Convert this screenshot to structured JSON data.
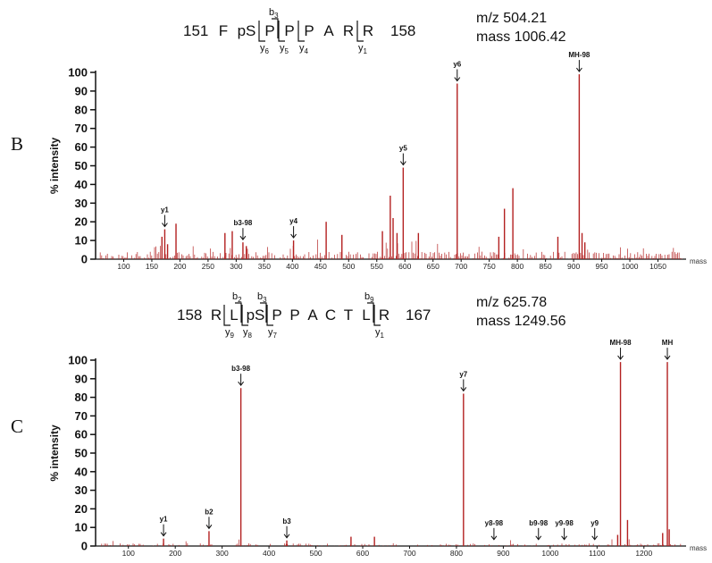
{
  "charts": [
    {
      "panel_letter": "B",
      "sequence": {
        "start_number": "151",
        "end_number": "158",
        "residues": [
          "F",
          "pS",
          "P",
          "P",
          "P",
          "A",
          "R",
          "R"
        ],
        "b_ions": [
          {
            "label": "b",
            "sub": "3",
            "after_index": 2
          }
        ],
        "y_ions": [
          {
            "label": "y",
            "sub": "6",
            "before_index": 2
          },
          {
            "label": "y",
            "sub": "5",
            "before_index": 3
          },
          {
            "label": "y",
            "sub": "4",
            "before_index": 4
          },
          {
            "label": "y",
            "sub": "1",
            "before_index": 7
          }
        ]
      },
      "mz_text": "m/z 504.21",
      "mass_text": "mass 1006.42"
    },
    {
      "panel_letter": "C",
      "sequence": {
        "start_number": "158",
        "end_number": "167",
        "residues": [
          "R",
          "L",
          "pS",
          "P",
          "P",
          "A",
          "C",
          "T",
          "L",
          "R"
        ],
        "b_ions": [
          {
            "label": "b",
            "sub": "2",
            "after_index": 1
          },
          {
            "label": "b",
            "sub": "3",
            "after_index": 2
          },
          {
            "label": "b",
            "sub": "9",
            "after_index": 8
          }
        ],
        "y_ions": [
          {
            "label": "y",
            "sub": "9",
            "before_index": 1
          },
          {
            "label": "y",
            "sub": "8",
            "before_index": 2
          },
          {
            "label": "y",
            "sub": "7",
            "before_index": 3
          },
          {
            "label": "y",
            "sub": "1",
            "before_index": 9
          }
        ]
      },
      "mz_text": "m/z 625.78",
      "mass_text": "mass 1249.56"
    }
  ],
  "chart_data": [
    {
      "type": "bar",
      "title": "",
      "xlabel": "mass",
      "ylabel": "% intensity",
      "xlim": [
        50,
        1100
      ],
      "ylim": [
        0,
        100
      ],
      "yticks": [
        0,
        10,
        20,
        30,
        40,
        50,
        60,
        70,
        80,
        90,
        100
      ],
      "xticks": [
        100,
        150,
        200,
        250,
        300,
        350,
        400,
        450,
        500,
        550,
        600,
        650,
        700,
        750,
        800,
        850,
        900,
        950,
        1000,
        1050
      ],
      "bar_color": "#b32020",
      "peaks": [
        {
          "x": 168,
          "y": 12
        },
        {
          "x": 173,
          "y": 16
        },
        {
          "x": 178,
          "y": 8
        },
        {
          "x": 193,
          "y": 19
        },
        {
          "x": 280,
          "y": 14
        },
        {
          "x": 293,
          "y": 15
        },
        {
          "x": 312,
          "y": 9
        },
        {
          "x": 318,
          "y": 7
        },
        {
          "x": 402,
          "y": 10
        },
        {
          "x": 460,
          "y": 20
        },
        {
          "x": 488,
          "y": 13
        },
        {
          "x": 560,
          "y": 15
        },
        {
          "x": 574,
          "y": 34
        },
        {
          "x": 579,
          "y": 22
        },
        {
          "x": 586,
          "y": 14
        },
        {
          "x": 597,
          "y": 49
        },
        {
          "x": 624,
          "y": 14
        },
        {
          "x": 693,
          "y": 94
        },
        {
          "x": 767,
          "y": 12
        },
        {
          "x": 777,
          "y": 27
        },
        {
          "x": 792,
          "y": 38
        },
        {
          "x": 872,
          "y": 12
        },
        {
          "x": 910,
          "y": 99
        },
        {
          "x": 915,
          "y": 14
        },
        {
          "x": 920,
          "y": 9
        }
      ],
      "annotations": [
        {
          "label": "y1",
          "x": 173,
          "y": 16
        },
        {
          "label": "b3-98",
          "x": 312,
          "y": 9
        },
        {
          "label": "y4",
          "x": 402,
          "y": 10
        },
        {
          "label": "y5",
          "x": 597,
          "y": 49
        },
        {
          "label": "y6",
          "x": 693,
          "y": 94
        },
        {
          "label": "MH-98",
          "x": 910,
          "y": 99
        }
      ]
    },
    {
      "type": "bar",
      "title": "",
      "xlabel": "mass",
      "ylabel": "% intensity",
      "xlim": [
        30,
        1290
      ],
      "ylim": [
        0,
        100
      ],
      "yticks": [
        0,
        10,
        20,
        30,
        40,
        50,
        60,
        70,
        80,
        90,
        100
      ],
      "xticks": [
        100,
        200,
        300,
        400,
        500,
        600,
        700,
        800,
        900,
        1000,
        1100,
        1200
      ],
      "bar_color": "#b32020",
      "peaks": [
        {
          "x": 175,
          "y": 4
        },
        {
          "x": 272,
          "y": 8
        },
        {
          "x": 340,
          "y": 85
        },
        {
          "x": 438,
          "y": 3
        },
        {
          "x": 575,
          "y": 5
        },
        {
          "x": 625,
          "y": 5
        },
        {
          "x": 815,
          "y": 82
        },
        {
          "x": 1144,
          "y": 6
        },
        {
          "x": 1150,
          "y": 99
        },
        {
          "x": 1165,
          "y": 14
        },
        {
          "x": 1240,
          "y": 7
        },
        {
          "x": 1250,
          "y": 99
        },
        {
          "x": 1254,
          "y": 9
        }
      ],
      "annotations": [
        {
          "label": "y1",
          "x": 175,
          "y": 4
        },
        {
          "label": "b2",
          "x": 272,
          "y": 8
        },
        {
          "label": "b3-98",
          "x": 340,
          "y": 85
        },
        {
          "label": "b3",
          "x": 438,
          "y": 3
        },
        {
          "label": "y7",
          "x": 815,
          "y": 82
        },
        {
          "label": "y8-98",
          "x": 880,
          "y": 2
        },
        {
          "label": "b9-98",
          "x": 975,
          "y": 2
        },
        {
          "label": "y9-98",
          "x": 1030,
          "y": 2
        },
        {
          "label": "y9",
          "x": 1095,
          "y": 2
        },
        {
          "label": "MH-98",
          "x": 1150,
          "y": 99
        },
        {
          "label": "MH",
          "x": 1250,
          "y": 99
        }
      ]
    }
  ]
}
